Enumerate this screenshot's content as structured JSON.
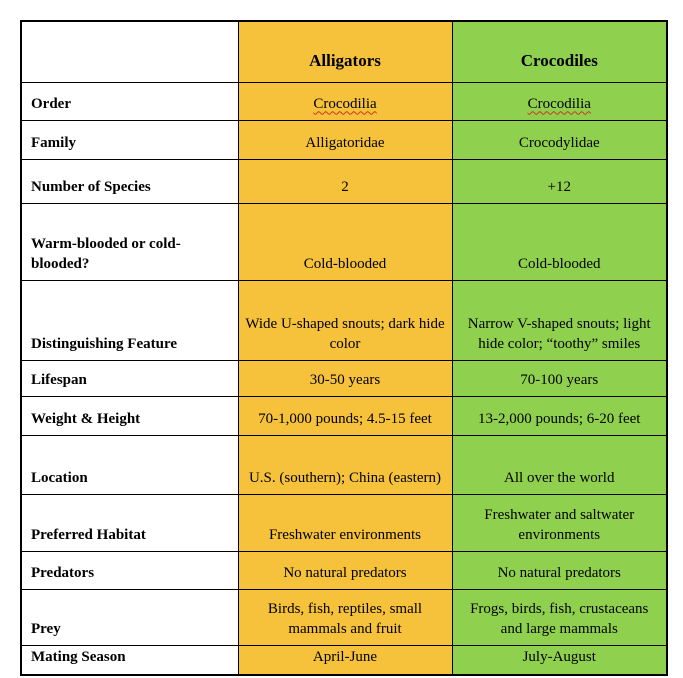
{
  "table": {
    "header": {
      "col1": "",
      "col2": "Alligators",
      "col3": "Crocodiles"
    },
    "rows": [
      {
        "label": "Order",
        "alligators": "Crocodilia",
        "crocodiles": "Crocodilia",
        "spellcheck_underline": true
      },
      {
        "label": "Family",
        "alligators": "Alligatoridae",
        "crocodiles": "Crocodylidae"
      },
      {
        "label": "Number of Species",
        "alligators": "2",
        "crocodiles": "+12"
      },
      {
        "label": "Warm-blooded or cold-blooded?",
        "alligators": "Cold-blooded",
        "crocodiles": "Cold-blooded"
      },
      {
        "label": "Distinguishing Feature",
        "alligators": "Wide U-shaped snouts; dark hide color",
        "crocodiles": "Narrow V-shaped snouts; light hide color; “toothy” smiles"
      },
      {
        "label": "Lifespan",
        "alligators": "30-50 years",
        "crocodiles": "70-100 years"
      },
      {
        "label": "Weight & Height",
        "alligators": "70-1,000 pounds; 4.5-15 feet",
        "crocodiles": "13-2,000 pounds; 6-20 feet"
      },
      {
        "label": "Location",
        "alligators": "U.S. (southern); China (eastern)",
        "crocodiles": "All over the world"
      },
      {
        "label": "Preferred Habitat",
        "alligators": "Freshwater environments",
        "crocodiles": "Freshwater and saltwater environments"
      },
      {
        "label": "Predators",
        "alligators": "No natural predators",
        "crocodiles": "No natural predators"
      },
      {
        "label": "Prey",
        "alligators": "Birds, fish, reptiles, small mammals and fruit",
        "crocodiles": "Frogs, birds, fish, crustaceans and large mammals"
      },
      {
        "label": "Mating Season",
        "alligators": "April-June",
        "crocodiles": "July-August"
      }
    ],
    "colors": {
      "alligators_column": "#F6C13B",
      "crocodiles_column": "#8FD14F",
      "border": "#000000",
      "spellcheck_underline": "#CC3322"
    }
  }
}
